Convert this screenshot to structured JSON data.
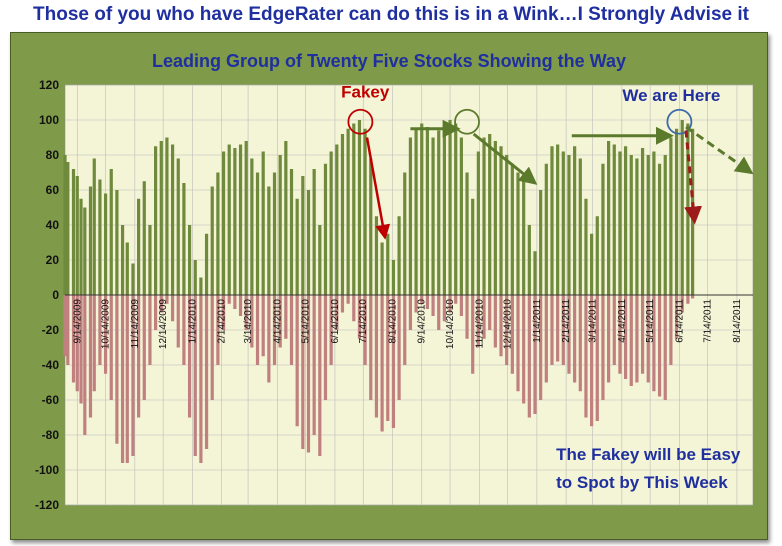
{
  "headline": "Those of you who have EdgeRater can do this is in a Wink…I Strongly Advise it",
  "colors": {
    "frame": "#7f9a48",
    "plot_bg": "#f4f4d6",
    "grid": "#bcbcbc",
    "positive": "#6f8a3c",
    "negative": "#c08080",
    "title": "#1f2f9f",
    "red_annotation": "#c00000",
    "green_arrow": "#5c7a2c",
    "blue_circle": "#3e6aa8"
  },
  "chart_data": {
    "type": "bar",
    "title": "Leading Group of Twenty Five Stocks Showing the Way",
    "xlabel": "",
    "ylabel": "",
    "ylim": [
      -120,
      120
    ],
    "y_ticks": [
      120,
      100,
      80,
      60,
      40,
      20,
      0,
      -20,
      -40,
      -60,
      -80,
      -100,
      -120
    ],
    "x_range": [
      "9/1/2009",
      "8/31/2011"
    ],
    "x_ticks": [
      "9/14/2009",
      "10/14/2009",
      "11/14/2009",
      "12/14/2009",
      "1/14/2010",
      "2/14/2010",
      "3/14/2010",
      "4/14/2010",
      "5/14/2010",
      "6/14/2010",
      "7/14/2010",
      "8/14/2010",
      "9/14/2010",
      "10/14/2010",
      "11/14/2010",
      "12/14/2010",
      "1/14/2011",
      "2/14/2011",
      "3/14/2011",
      "4/14/2011",
      "5/14/2011",
      "6/14/2011",
      "7/14/2011",
      "8/14/2011"
    ],
    "grid": true,
    "legend": "none",
    "series": [
      {
        "dates": [
          "9/1/2009",
          "9/4/2009",
          "9/10/2009",
          "9/14/2009",
          "9/18/2009",
          "9/22/2009",
          "9/28/2009",
          "10/2/2009",
          "10/8/2009",
          "10/14/2009",
          "10/20/2009",
          "10/26/2009",
          "11/1/2009",
          "11/6/2009",
          "11/12/2009",
          "11/18/2009",
          "11/24/2009",
          "11/30/2009",
          "12/6/2009",
          "12/12/2009",
          "12/18/2009",
          "12/24/2009",
          "12/30/2009",
          "1/5/2010",
          "1/11/2010",
          "1/17/2010",
          "1/23/2010",
          "1/29/2010",
          "2/4/2010",
          "2/10/2010",
          "2/16/2010",
          "2/22/2010",
          "2/28/2010",
          "3/6/2010",
          "3/12/2010",
          "3/18/2010",
          "3/24/2010",
          "3/30/2010",
          "4/5/2010",
          "4/11/2010",
          "4/17/2010",
          "4/23/2010",
          "4/29/2010",
          "5/5/2010",
          "5/11/2010",
          "5/17/2010",
          "5/23/2010",
          "5/29/2010",
          "6/4/2010",
          "6/10/2010",
          "6/16/2010",
          "6/22/2010",
          "6/28/2010",
          "7/4/2010",
          "7/10/2010",
          "7/16/2010",
          "7/22/2010",
          "7/28/2010",
          "8/3/2010",
          "8/9/2010",
          "8/15/2010",
          "8/21/2010",
          "8/27/2010",
          "9/2/2010",
          "9/8/2010",
          "9/14/2010",
          "9/20/2010",
          "9/26/2010",
          "10/2/2010",
          "10/8/2010",
          "10/14/2010",
          "10/20/2010",
          "10/26/2010",
          "11/1/2010",
          "11/7/2010",
          "11/13/2010",
          "11/19/2010",
          "11/25/2010",
          "12/1/2010",
          "12/7/2010",
          "12/13/2010",
          "12/19/2010",
          "12/25/2010",
          "12/31/2010",
          "1/6/2011",
          "1/12/2011",
          "1/18/2011",
          "1/24/2011",
          "1/30/2011",
          "2/5/2011",
          "2/11/2011",
          "2/17/2011",
          "2/23/2011",
          "3/1/2011",
          "3/7/2011",
          "3/13/2011",
          "3/19/2011",
          "3/25/2011",
          "3/31/2011",
          "4/6/2011",
          "4/12/2011",
          "4/18/2011",
          "4/24/2011",
          "4/30/2011",
          "5/6/2011",
          "5/12/2011",
          "5/18/2011",
          "5/24/2011",
          "5/30/2011",
          "6/5/2011",
          "6/11/2011",
          "6/17/2011",
          "6/23/2011",
          "6/28/2011"
        ],
        "values_high": [
          80,
          76,
          72,
          68,
          55,
          50,
          62,
          78,
          66,
          58,
          72,
          60,
          40,
          30,
          18,
          55,
          65,
          40,
          85,
          88,
          90,
          86,
          78,
          64,
          40,
          20,
          10,
          35,
          62,
          70,
          82,
          86,
          84,
          86,
          88,
          78,
          70,
          82,
          62,
          70,
          80,
          88,
          72,
          55,
          68,
          60,
          72,
          40,
          75,
          82,
          86,
          92,
          95,
          98,
          100,
          95,
          78,
          45,
          30,
          35,
          20,
          45,
          70,
          90,
          95,
          98,
          96,
          90,
          94,
          97,
          100,
          98,
          90,
          70,
          55,
          82,
          90,
          92,
          88,
          85,
          80,
          75,
          70,
          65,
          40,
          25,
          60,
          75,
          85,
          86,
          82,
          80,
          85,
          78,
          55,
          35,
          45,
          75,
          88,
          86,
          82,
          85,
          80,
          78,
          84,
          80,
          82,
          75,
          80,
          90,
          95,
          100,
          98,
          95
        ],
        "values_low": [
          -35,
          -40,
          -50,
          -55,
          -62,
          -80,
          -70,
          -55,
          -40,
          -45,
          -60,
          -85,
          -96,
          -96,
          -92,
          -70,
          -60,
          -40,
          -20,
          -10,
          -5,
          -15,
          -30,
          -40,
          -70,
          -92,
          -96,
          -88,
          -60,
          -40,
          -20,
          -5,
          -8,
          -12,
          -20,
          -30,
          -40,
          -35,
          -50,
          -40,
          -30,
          -25,
          -40,
          -75,
          -88,
          -90,
          -80,
          -92,
          -60,
          -40,
          -20,
          -10,
          -5,
          -15,
          -25,
          -40,
          -60,
          -70,
          -78,
          -72,
          -76,
          -60,
          -40,
          -20,
          -10,
          -5,
          -8,
          -12,
          -20,
          -15,
          -10,
          -5,
          -12,
          -25,
          -45,
          -30,
          -25,
          -20,
          -30,
          -35,
          -40,
          -45,
          -55,
          -62,
          -70,
          -68,
          -60,
          -50,
          -40,
          -38,
          -40,
          -45,
          -50,
          -55,
          -70,
          -75,
          -72,
          -60,
          -50,
          -40,
          -45,
          -48,
          -52,
          -50,
          -45,
          -50,
          -55,
          -58,
          -60,
          -40,
          -25,
          -10,
          -5,
          -2
        ]
      }
    ],
    "annotations": [
      {
        "text": "Fakey",
        "date": "7/14/2010",
        "y": 113
      },
      {
        "text": "We are Here",
        "date": "6/14/2011",
        "y": 111
      },
      {
        "text": "The Fakey will be Easy",
        "date": "2/14/2011",
        "y": -92
      },
      {
        "text": "to Spot by This Week",
        "date": "2/14/2011",
        "y": -108
      }
    ]
  }
}
